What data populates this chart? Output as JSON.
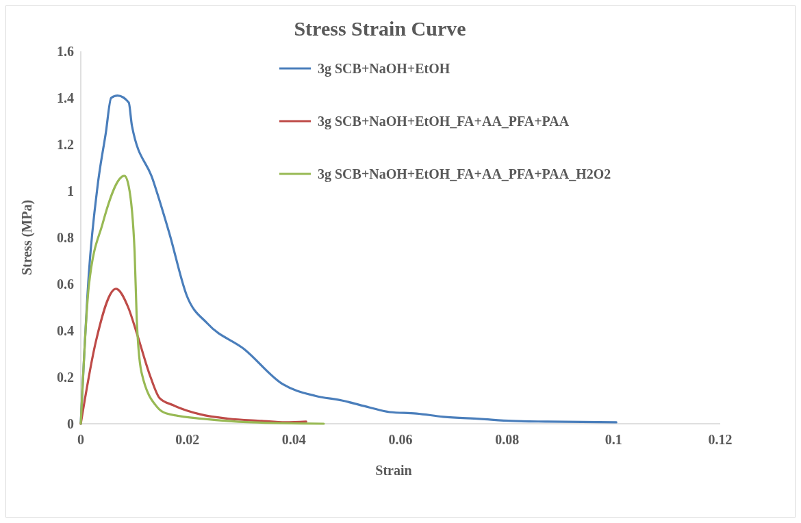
{
  "chart_data": {
    "type": "line",
    "title": "Stress Strain Curve",
    "xlabel": "Strain",
    "ylabel": "Stress (MPa)",
    "xlim": [
      0,
      0.12
    ],
    "xticks": [
      0,
      0.02,
      0.04,
      0.06,
      0.08,
      0.1,
      0.12
    ],
    "ylim": [
      0,
      1.6
    ],
    "yticks": [
      0,
      0.2,
      0.4,
      0.6,
      0.8,
      1,
      1.2,
      1.4,
      1.6
    ],
    "grid": false,
    "legend": "top right",
    "marker": "none",
    "line_style": "solid",
    "series": [
      {
        "name": "3g SCB+NaOH+EtOH",
        "color": "#4a7ebb",
        "x": [
          0,
          0.0015,
          0.0032,
          0.0047,
          0.0057,
          0.0069,
          0.009,
          0.0096,
          0.0135,
          0.0166,
          0.0199,
          0.0238,
          0.0307,
          0.0379,
          0.044,
          0.049,
          0.0542,
          0.058,
          0.063,
          0.068,
          0.0748,
          0.081,
          0.0876,
          0.1005
        ],
        "values": [
          0,
          0.64,
          1.03,
          1.25,
          1.4,
          1.41,
          1.38,
          1.28,
          1.05,
          0.82,
          0.55,
          0.43,
          0.32,
          0.17,
          0.12,
          0.1,
          0.07,
          0.05,
          0.044,
          0.03,
          0.021,
          0.012,
          0.009,
          0.006
        ]
      },
      {
        "name": "3g SCB+NaOH+EtOH_FA+AA_PFA+PAA",
        "color": "#be4b48",
        "x": [
          0,
          0.0028,
          0.0066,
          0.0089,
          0.0105,
          0.0131,
          0.0148,
          0.0173,
          0.0225,
          0.0276,
          0.034,
          0.0384,
          0.0423
        ],
        "values": [
          0,
          0.35,
          0.58,
          0.5,
          0.39,
          0.2,
          0.11,
          0.08,
          0.04,
          0.022,
          0.012,
          0.006,
          0.009
        ]
      },
      {
        "name": "3g SCB+NaOH+EtOH_FA+AA_PFA+PAA_H2O2",
        "color": "#98b954",
        "x": [
          0,
          0.0015,
          0.0041,
          0.0082,
          0.009,
          0.0101,
          0.0105,
          0.0114,
          0.0144,
          0.016,
          0.0234,
          0.032,
          0.0456
        ],
        "values": [
          0,
          0.59,
          0.86,
          1.065,
          1.02,
          0.74,
          0.45,
          0.22,
          0.07,
          0.045,
          0.02,
          0.006,
          0
        ]
      }
    ]
  }
}
